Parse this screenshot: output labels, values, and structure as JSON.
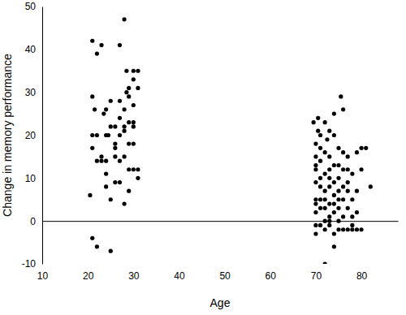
{
  "chart_data": {
    "type": "scatter",
    "x_label": "Age",
    "y_label": "Change in memory performance",
    "x": [
      21,
      22,
      20.5,
      21,
      21,
      21.5,
      21,
      22,
      23,
      22,
      23,
      23.5,
      24,
      24,
      24,
      23,
      24,
      24.5,
      25,
      25,
      25,
      25,
      26,
      26,
      26,
      26,
      27,
      27,
      27,
      27,
      27,
      27,
      28,
      28,
      28,
      28,
      28,
      28,
      28.5,
      28.5,
      29,
      29,
      29,
      29,
      29,
      29,
      30,
      30,
      30,
      30,
      30,
      30,
      30,
      31,
      31,
      31,
      31,
      26,
      24,
      22,
      21,
      69.5,
      70,
      70,
      70,
      70,
      70,
      70,
      70,
      70,
      70,
      70,
      70.5,
      70.5,
      71,
      71,
      71,
      71,
      71,
      71,
      71,
      71,
      72,
      72,
      72,
      72,
      72,
      72,
      72,
      72,
      72,
      72.5,
      73,
      73,
      73,
      73,
      73,
      73,
      73,
      73,
      73,
      74,
      74,
      74,
      74,
      74,
      74,
      74,
      74,
      74,
      75,
      75,
      75,
      75,
      75,
      75,
      75,
      75,
      75.5,
      76,
      76,
      76,
      76,
      76,
      76,
      76,
      77,
      77,
      77,
      77,
      77,
      77,
      78,
      78,
      78,
      78,
      78,
      79,
      79,
      79,
      79,
      80,
      80,
      80,
      81,
      82
    ],
    "values": [
      42,
      39,
      6,
      17,
      20,
      26,
      -4,
      -6,
      41,
      20,
      14,
      25,
      20,
      11,
      8,
      15,
      26,
      20,
      28,
      22,
      5,
      -7,
      22,
      17,
      15,
      18,
      41,
      28,
      24,
      14,
      9,
      20,
      47,
      26,
      22,
      21,
      15,
      4,
      30,
      35,
      29,
      23,
      18,
      31,
      12,
      7,
      33,
      35,
      27,
      23,
      22,
      18,
      12,
      35,
      31,
      12,
      10,
      9,
      14,
      14,
      29,
      23,
      15,
      13,
      18,
      5,
      4,
      2,
      -3,
      -1,
      9,
      12,
      24,
      21,
      20,
      17,
      14,
      10,
      8,
      5,
      3,
      -1,
      23,
      16,
      11,
      7,
      5,
      3,
      0,
      -2,
      -10,
      19,
      21,
      15,
      12,
      10,
      8,
      4,
      1,
      0,
      -1,
      25,
      20,
      13,
      9,
      6,
      4,
      2,
      -3,
      -6,
      17,
      13,
      10,
      7,
      5,
      3,
      0,
      -2,
      29,
      26,
      16,
      12,
      8,
      5,
      1,
      -2,
      15,
      12,
      9,
      7,
      3,
      -2,
      11,
      5,
      1,
      -1,
      -2,
      16,
      7,
      2,
      -2,
      17,
      12,
      -2,
      17,
      8
    ],
    "color": "#000000",
    "marker": "circle",
    "xlim": [
      10,
      88
    ],
    "xticks": [
      10,
      20,
      30,
      40,
      50,
      60,
      70,
      80
    ],
    "ylim": [
      -10,
      50
    ],
    "yticks": [
      -10,
      0,
      10,
      20,
      30,
      40,
      50
    ],
    "grid": false
  }
}
